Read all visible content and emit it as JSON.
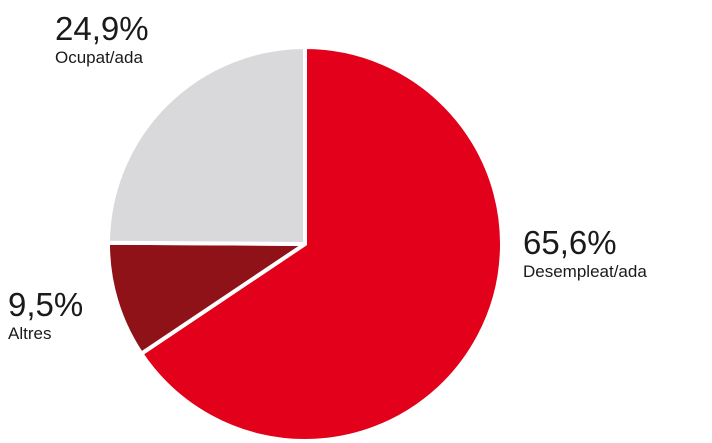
{
  "chart_data": {
    "type": "pie",
    "slices": [
      {
        "label": "Desempleat/ada",
        "value": 65.6,
        "value_label": "65,6%",
        "color": "#e2001a"
      },
      {
        "label": "Altres",
        "value": 9.5,
        "value_label": "9,5%",
        "color": "#8f1219"
      },
      {
        "label": "Ocupat/ada",
        "value": 24.9,
        "value_label": "24,9%",
        "color": "#d9d9db"
      }
    ],
    "start": "top (12 o'clock)",
    "direction": "clockwise",
    "slice_separator_color": "#ffffff",
    "legend": "none",
    "title": ""
  }
}
